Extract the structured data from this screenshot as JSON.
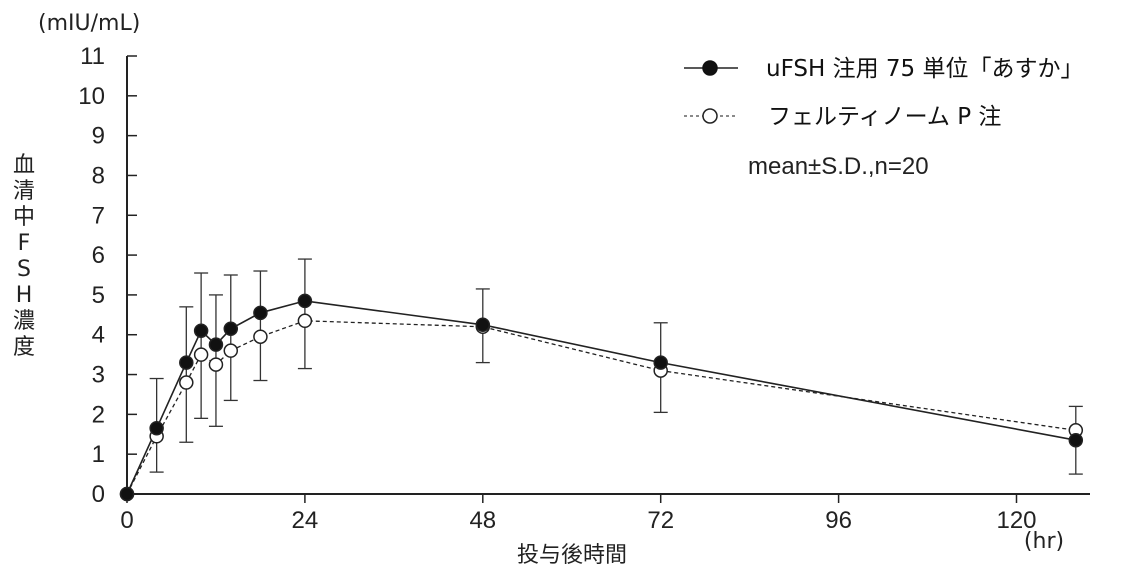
{
  "chart_data": {
    "type": "line",
    "y_unit": "(mIU/mL)",
    "ylabel": "血清中FSH濃度",
    "xlabel": "投与後時間",
    "x_unit": "(hr)",
    "xlim": [
      0,
      132
    ],
    "ylim": [
      0,
      11
    ],
    "x_ticks": [
      "0",
      "24",
      "48",
      "72",
      "96",
      "120"
    ],
    "y_ticks": [
      "0",
      "1",
      "2",
      "3",
      "4",
      "5",
      "6",
      "7",
      "8",
      "9",
      "10",
      "11"
    ],
    "grid": false,
    "legend_position": "top-right",
    "annotation": "mean±S.D.,n=20",
    "series": [
      {
        "name": "uFSH 注用 75 単位「あすか」",
        "marker": "filled-circle",
        "line_style": "solid",
        "color": "#222222",
        "x": [
          0,
          4,
          8,
          10,
          12,
          14,
          18,
          24,
          48,
          72,
          128
        ],
        "y": [
          0,
          1.65,
          3.3,
          4.1,
          3.75,
          4.15,
          4.55,
          4.85,
          4.25,
          3.3,
          1.35
        ],
        "upper": [
          0,
          2.9,
          4.7,
          5.55,
          5.0,
          5.5,
          5.6,
          5.9,
          5.15,
          4.3,
          2.2
        ]
      },
      {
        "name": "フェルティノーム P 注",
        "marker": "open-circle",
        "line_style": "dashed",
        "color": "#222222",
        "x": [
          0,
          4,
          8,
          10,
          12,
          14,
          18,
          24,
          48,
          72,
          128
        ],
        "y": [
          0,
          1.45,
          2.8,
          3.5,
          3.25,
          3.6,
          3.95,
          4.35,
          4.2,
          3.1,
          1.6
        ],
        "lower": [
          0,
          0.55,
          1.3,
          1.9,
          1.7,
          2.35,
          2.85,
          3.15,
          3.3,
          2.05,
          0.5
        ]
      }
    ]
  }
}
